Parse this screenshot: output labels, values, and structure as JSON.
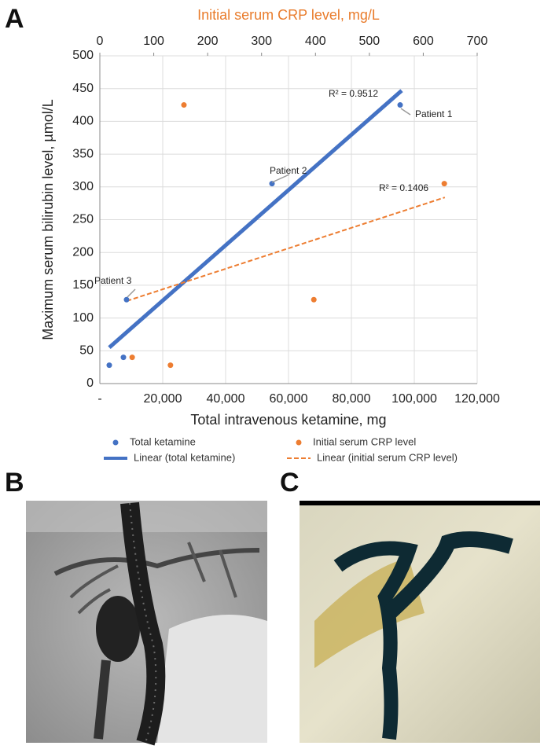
{
  "panels": [
    "A",
    "B",
    "C"
  ],
  "chart_data": {
    "type": "scatter",
    "xlabel": "Total intravenous ketamine, mg",
    "ylabel": "Maximum serum bilirubin level, µmol/L",
    "x2label": "Initial serum CRP level, mg/L",
    "x2label_color": "#e97c2c",
    "xlim": [
      0,
      120000
    ],
    "xticks": [
      {
        "value": 0,
        "label": "-"
      },
      {
        "value": 20000,
        "label": "20,000"
      },
      {
        "value": 40000,
        "label": "40,000"
      },
      {
        "value": 60000,
        "label": "60,000"
      },
      {
        "value": 80000,
        "label": "80,000"
      },
      {
        "value": 100000,
        "label": "100,000"
      },
      {
        "value": 120000,
        "label": "120,000"
      }
    ],
    "x2lim": [
      0,
      700
    ],
    "x2ticks": [
      0,
      100,
      200,
      300,
      400,
      500,
      600,
      700
    ],
    "ylim": [
      0,
      500
    ],
    "yticks": [
      0,
      50,
      100,
      150,
      200,
      250,
      300,
      350,
      400,
      450,
      500
    ],
    "grid": true,
    "series": [
      {
        "name": "Total ketamine",
        "color": "#4472c4",
        "x": [
          3000,
          7500,
          8500,
          54750,
          95500
        ],
        "values": [
          28,
          40,
          128,
          305,
          425
        ]
      },
      {
        "name": "Initial serum CRP level",
        "color": "#ed7d31",
        "axis": "x2",
        "x": [
          60,
          131,
          156,
          397,
          639
        ],
        "values": [
          40,
          28,
          425,
          128,
          305
        ]
      }
    ],
    "trendlines": [
      {
        "name": "Linear (total ketamine)",
        "color": "#4472c4",
        "style": "solid",
        "x": [
          3000,
          96000
        ],
        "values": [
          55,
          447
        ]
      },
      {
        "name": "Linear (initial serum CRP level)",
        "color": "#ed7d31",
        "style": "dashed",
        "axis": "x2",
        "x": [
          50,
          640
        ],
        "values": [
          126,
          284
        ]
      }
    ],
    "annotations": [
      "R² = 0.9512",
      "R² = 0.1406",
      "Patient 1",
      "Patient 2",
      "Patient 3"
    ]
  }
}
